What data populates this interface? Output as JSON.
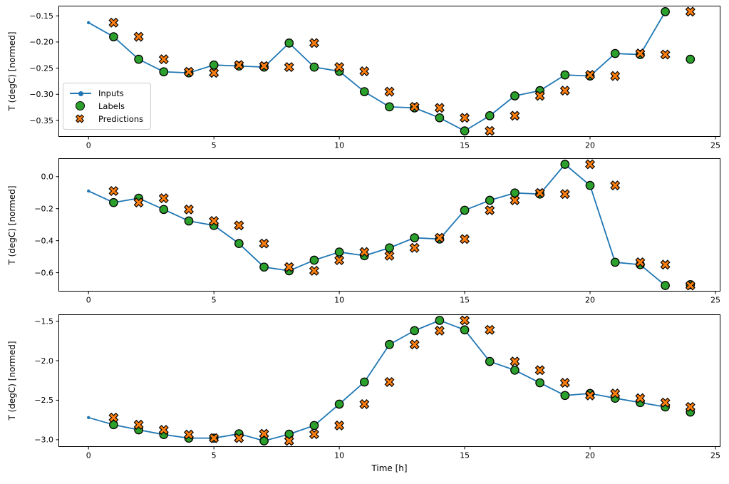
{
  "figure": {
    "xlabel": "Time [h]",
    "ylabel": "T (degC) [normed]",
    "background": "#ffffff",
    "colors": {
      "inputs": "#1f77b4",
      "labels": "#2ca02c",
      "predictions": "#ff7f0e",
      "marker_edge": "#000000",
      "spine": "#000000",
      "text": "#000000",
      "legend_border": "#cccccc"
    }
  },
  "legend": {
    "position": "lower-left-of-first-subplot",
    "items": [
      {
        "label": "Inputs",
        "marker": "line-with-dot"
      },
      {
        "label": "Labels",
        "marker": "filled-circle"
      },
      {
        "label": "Predictions",
        "marker": "filled-x"
      }
    ]
  },
  "chart_data": [
    {
      "type": "line",
      "title": "",
      "xlabel": "",
      "ylabel": "T (degC) [normed]",
      "xlim": [
        -1.2,
        25.2
      ],
      "ylim": [
        -0.3814,
        -0.1306
      ],
      "grid": false,
      "xticks": [
        {
          "v": 0,
          "label": "0"
        },
        {
          "v": 5,
          "label": "5"
        },
        {
          "v": 10,
          "label": "10"
        },
        {
          "v": 15,
          "label": "15"
        },
        {
          "v": 20,
          "label": "20"
        },
        {
          "v": 25,
          "label": "25"
        }
      ],
      "yticks": [
        {
          "v": -0.15,
          "label": "−0.15"
        },
        {
          "v": -0.2,
          "label": "−0.20"
        },
        {
          "v": -0.25,
          "label": "−0.25"
        },
        {
          "v": -0.3,
          "label": "−0.30"
        },
        {
          "v": -0.35,
          "label": "−0.35"
        }
      ],
      "series": [
        {
          "name": "Inputs",
          "kind": "line+dot",
          "x": [
            0,
            1,
            2,
            3,
            4,
            5,
            6,
            7,
            8,
            9,
            10,
            11,
            12,
            13,
            14,
            15,
            16,
            17,
            18,
            19,
            20,
            21,
            22,
            23
          ],
          "y": [
            -0.163,
            -0.19,
            -0.233,
            -0.257,
            -0.259,
            -0.244,
            -0.246,
            -0.248,
            -0.202,
            -0.248,
            -0.256,
            -0.295,
            -0.324,
            -0.326,
            -0.345,
            -0.37,
            -0.341,
            -0.303,
            -0.293,
            -0.263,
            -0.265,
            -0.222,
            -0.224,
            -0.142
          ]
        },
        {
          "name": "Labels",
          "kind": "circle",
          "x": [
            1,
            2,
            3,
            4,
            5,
            6,
            7,
            8,
            9,
            10,
            11,
            12,
            13,
            14,
            15,
            16,
            17,
            18,
            19,
            20,
            21,
            22,
            23,
            24
          ],
          "y": [
            -0.19,
            -0.233,
            -0.257,
            -0.259,
            -0.244,
            -0.246,
            -0.248,
            -0.202,
            -0.248,
            -0.256,
            -0.295,
            -0.324,
            -0.326,
            -0.345,
            -0.37,
            -0.341,
            -0.303,
            -0.293,
            -0.263,
            -0.265,
            -0.222,
            -0.224,
            -0.142,
            -0.233
          ]
        },
        {
          "name": "Predictions",
          "kind": "X",
          "x": [
            1,
            2,
            3,
            4,
            5,
            6,
            7,
            8,
            9,
            10,
            11,
            12,
            13,
            14,
            15,
            16,
            17,
            18,
            19,
            20,
            21,
            22,
            23,
            24
          ],
          "y": [
            -0.163,
            -0.19,
            -0.233,
            -0.257,
            -0.259,
            -0.244,
            -0.246,
            -0.248,
            -0.202,
            -0.248,
            -0.256,
            -0.295,
            -0.324,
            -0.326,
            -0.345,
            -0.37,
            -0.341,
            -0.303,
            -0.293,
            -0.263,
            -0.265,
            -0.222,
            -0.224,
            -0.142
          ]
        }
      ]
    },
    {
      "type": "line",
      "title": "",
      "xlabel": "",
      "ylabel": "T (degC) [normed]",
      "xlim": [
        -1.2,
        25.2
      ],
      "ylim": [
        -0.71785,
        0.11485
      ],
      "grid": false,
      "xticks": [
        {
          "v": 0,
          "label": "0"
        },
        {
          "v": 5,
          "label": "5"
        },
        {
          "v": 10,
          "label": "10"
        },
        {
          "v": 15,
          "label": "15"
        },
        {
          "v": 20,
          "label": "20"
        },
        {
          "v": 25,
          "label": "25"
        }
      ],
      "yticks": [
        {
          "v": 0.0,
          "label": "0.0"
        },
        {
          "v": -0.2,
          "label": "−0.2"
        },
        {
          "v": -0.4,
          "label": "−0.4"
        },
        {
          "v": -0.6,
          "label": "−0.6"
        }
      ],
      "series": [
        {
          "name": "Inputs",
          "kind": "line+dot",
          "x": [
            0,
            1,
            2,
            3,
            4,
            5,
            6,
            7,
            8,
            9,
            10,
            11,
            12,
            13,
            14,
            15,
            16,
            17,
            18,
            19,
            20,
            21,
            22,
            23
          ],
          "y": [
            -0.09,
            -0.162,
            -0.135,
            -0.205,
            -0.277,
            -0.305,
            -0.418,
            -0.565,
            -0.588,
            -0.522,
            -0.471,
            -0.494,
            -0.445,
            -0.382,
            -0.39,
            -0.21,
            -0.148,
            -0.102,
            -0.109,
            0.077,
            -0.055,
            -0.535,
            -0.55,
            -0.68
          ]
        },
        {
          "name": "Labels",
          "kind": "circle",
          "x": [
            1,
            2,
            3,
            4,
            5,
            6,
            7,
            8,
            9,
            10,
            11,
            12,
            13,
            14,
            15,
            16,
            17,
            18,
            19,
            20,
            21,
            22,
            23,
            24
          ],
          "y": [
            -0.162,
            -0.135,
            -0.205,
            -0.277,
            -0.305,
            -0.418,
            -0.565,
            -0.588,
            -0.522,
            -0.471,
            -0.494,
            -0.445,
            -0.382,
            -0.39,
            -0.21,
            -0.148,
            -0.102,
            -0.109,
            0.077,
            -0.055,
            -0.535,
            -0.55,
            -0.68,
            -0.675
          ]
        },
        {
          "name": "Predictions",
          "kind": "X",
          "x": [
            1,
            2,
            3,
            4,
            5,
            6,
            7,
            8,
            9,
            10,
            11,
            12,
            13,
            14,
            15,
            16,
            17,
            18,
            19,
            20,
            21,
            22,
            23,
            24
          ],
          "y": [
            -0.09,
            -0.162,
            -0.135,
            -0.205,
            -0.277,
            -0.305,
            -0.418,
            -0.565,
            -0.588,
            -0.522,
            -0.471,
            -0.494,
            -0.445,
            -0.382,
            -0.39,
            -0.21,
            -0.148,
            -0.102,
            -0.109,
            0.077,
            -0.055,
            -0.535,
            -0.55,
            -0.68
          ]
        }
      ]
    },
    {
      "type": "line",
      "title": "",
      "xlabel": "Time [h]",
      "ylabel": "T (degC) [normed]",
      "xlim": [
        -1.2,
        25.2
      ],
      "ylim": [
        -3.09125,
        -1.41375
      ],
      "grid": false,
      "xticks": [
        {
          "v": 0,
          "label": "0"
        },
        {
          "v": 5,
          "label": "5"
        },
        {
          "v": 10,
          "label": "10"
        },
        {
          "v": 15,
          "label": "15"
        },
        {
          "v": 20,
          "label": "20"
        },
        {
          "v": 25,
          "label": "25"
        }
      ],
      "yticks": [
        {
          "v": -1.5,
          "label": "−1.5"
        },
        {
          "v": -2.0,
          "label": "−2.0"
        },
        {
          "v": -2.5,
          "label": "−2.5"
        },
        {
          "v": -3.0,
          "label": "−3.0"
        }
      ],
      "series": [
        {
          "name": "Inputs",
          "kind": "line+dot",
          "x": [
            0,
            1,
            2,
            3,
            4,
            5,
            6,
            7,
            8,
            9,
            10,
            11,
            12,
            13,
            14,
            15,
            16,
            17,
            18,
            19,
            20,
            21,
            22,
            23
          ],
          "y": [
            -2.72,
            -2.81,
            -2.875,
            -2.935,
            -2.98,
            -2.98,
            -2.925,
            -3.015,
            -2.93,
            -2.82,
            -2.55,
            -2.27,
            -1.795,
            -1.62,
            -1.49,
            -1.61,
            -2.01,
            -2.12,
            -2.28,
            -2.44,
            -2.415,
            -2.475,
            -2.53,
            -2.585
          ]
        },
        {
          "name": "Labels",
          "kind": "circle",
          "x": [
            1,
            2,
            3,
            4,
            5,
            6,
            7,
            8,
            9,
            10,
            11,
            12,
            13,
            14,
            15,
            16,
            17,
            18,
            19,
            20,
            21,
            22,
            23,
            24
          ],
          "y": [
            -2.81,
            -2.875,
            -2.935,
            -2.98,
            -2.98,
            -2.925,
            -3.015,
            -2.93,
            -2.82,
            -2.55,
            -2.27,
            -1.795,
            -1.62,
            -1.49,
            -1.61,
            -2.01,
            -2.12,
            -2.28,
            -2.44,
            -2.415,
            -2.475,
            -2.53,
            -2.585,
            -2.65
          ]
        },
        {
          "name": "Predictions",
          "kind": "X",
          "x": [
            1,
            2,
            3,
            4,
            5,
            6,
            7,
            8,
            9,
            10,
            11,
            12,
            13,
            14,
            15,
            16,
            17,
            18,
            19,
            20,
            21,
            22,
            23,
            24
          ],
          "y": [
            -2.72,
            -2.81,
            -2.875,
            -2.935,
            -2.98,
            -2.98,
            -2.925,
            -3.015,
            -2.93,
            -2.82,
            -2.55,
            -2.27,
            -1.795,
            -1.62,
            -1.49,
            -1.61,
            -2.01,
            -2.12,
            -2.28,
            -2.44,
            -2.415,
            -2.475,
            -2.53,
            -2.585
          ]
        }
      ]
    }
  ]
}
